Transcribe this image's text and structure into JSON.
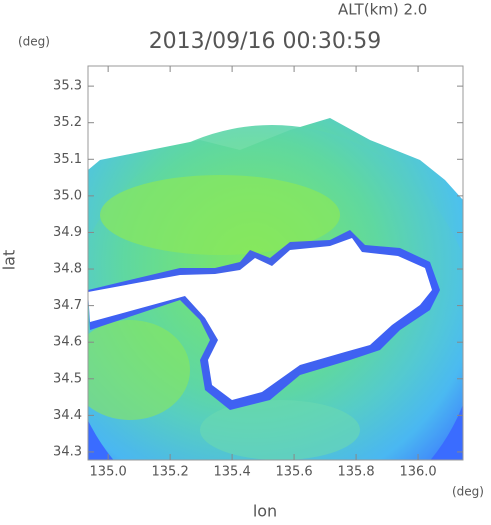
{
  "chart_data": {
    "type": "radar",
    "title": "2013/09/16 00:30:59",
    "subtitle": "ALT(km)  2.0",
    "x_label": "lon",
    "y_label": "lat",
    "x_unit": "(deg)",
    "y_unit": "(deg)",
    "xlim": [
      134.935,
      136.145
    ],
    "ylim": [
      34.278,
      35.355
    ],
    "xticks": [
      {
        "value": 135,
        "label": "135.0"
      },
      135.2,
      135.4,
      135.6,
      135.8,
      {
        "value": 136,
        "label": "136.0"
      }
    ],
    "yticks": [
      34.3,
      34.4,
      34.5,
      34.6,
      34.7,
      34.8,
      34.9,
      {
        "value": 35,
        "label": "35.0"
      },
      35.1,
      35.2,
      35.3
    ]
  }
}
